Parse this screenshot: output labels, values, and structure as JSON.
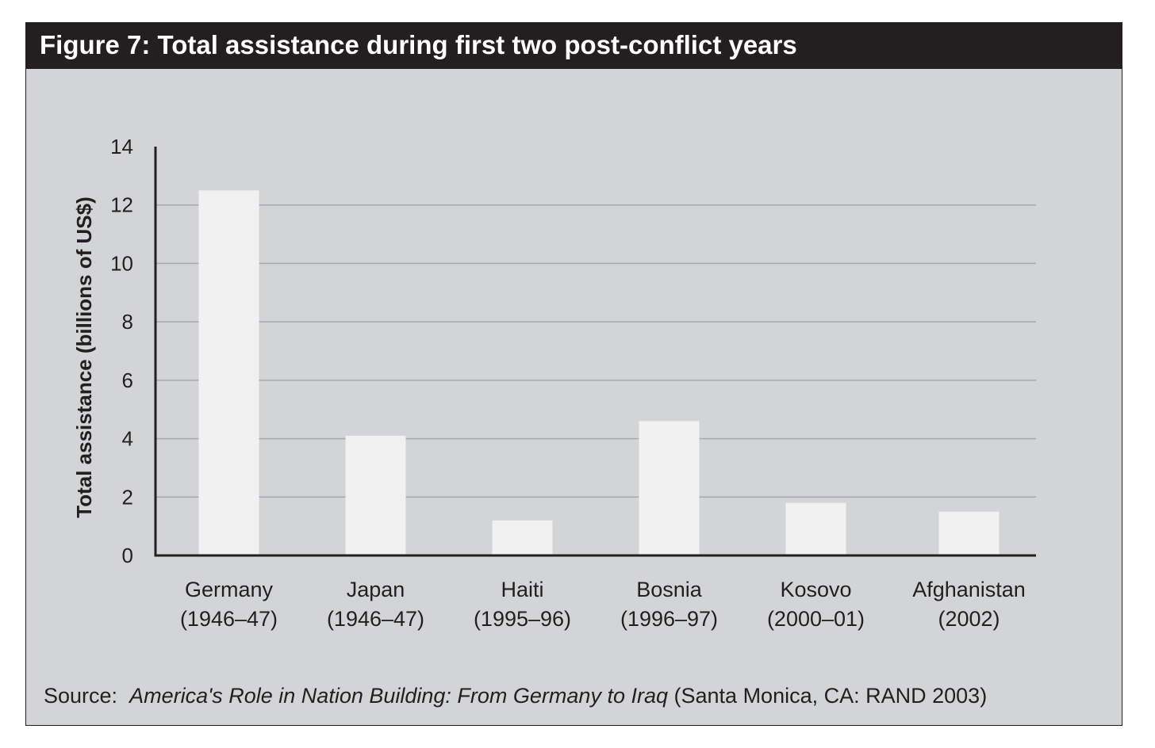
{
  "chart_data": {
    "type": "bar",
    "title": "Figure 7: Total assistance during first two post-conflict years",
    "xlabel": "",
    "ylabel": "Total assistance (billions of US$)",
    "ylim": [
      0,
      14
    ],
    "yticks": [
      0,
      2,
      4,
      6,
      8,
      10,
      12,
      14
    ],
    "grid": true,
    "categories": [
      {
        "name": "Germany",
        "period": "(1946–47)"
      },
      {
        "name": "Japan",
        "period": "(1946–47)"
      },
      {
        "name": "Haiti",
        "period": "(1995–96)"
      },
      {
        "name": "Bosnia",
        "period": "(1996–97)"
      },
      {
        "name": "Kosovo",
        "period": "(2000–01)"
      },
      {
        "name": "Afghanistan",
        "period": "(2002)"
      }
    ],
    "values": [
      12.5,
      4.1,
      1.2,
      4.6,
      1.8,
      1.5
    ],
    "bar_color": "#f1f1f1",
    "background_color": "#d3d4d6"
  },
  "source": {
    "label": "Source:",
    "title": "America's Role in Nation Building: From Germany to Iraq",
    "details": "(Santa Monica, CA: RAND 2003)"
  }
}
